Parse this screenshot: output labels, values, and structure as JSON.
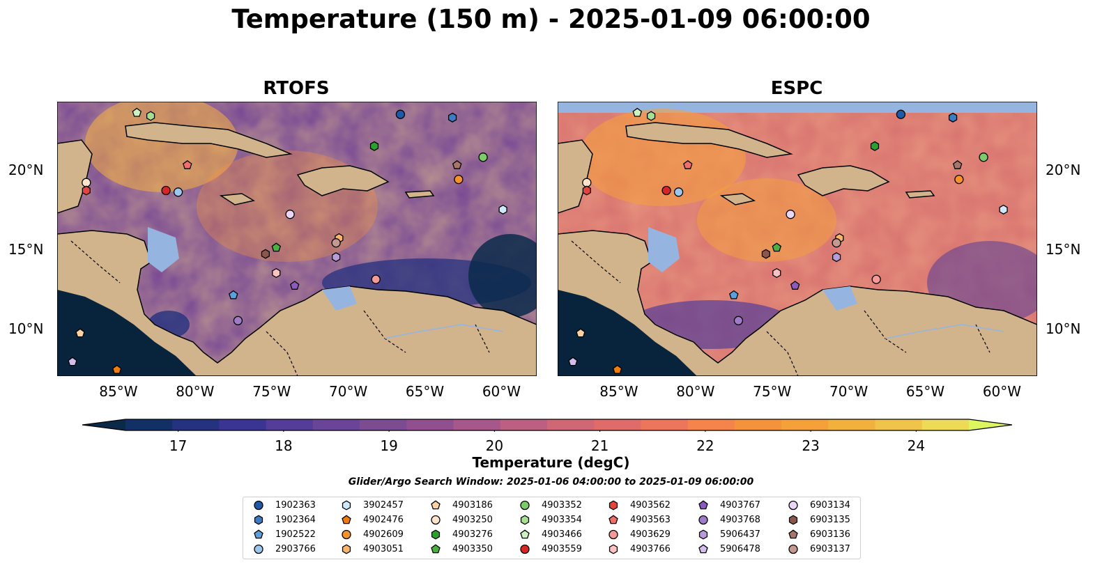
{
  "title": "Temperature (150 m) - 2025-01-09 06:00:00",
  "panels": [
    {
      "title": "RTOFS"
    },
    {
      "title": "ESPC"
    }
  ],
  "axes": {
    "lon_ticks": [
      "85°W",
      "80°W",
      "75°W",
      "70°W",
      "65°W",
      "60°W"
    ],
    "lat_ticks": [
      "20°N",
      "15°N",
      "10°N"
    ]
  },
  "colorbar": {
    "label": "Temperature (degC)",
    "ticks": [
      "17",
      "18",
      "19",
      "20",
      "21",
      "22",
      "23",
      "24"
    ],
    "range": [
      16.5,
      24.5
    ],
    "colors": [
      "#0b2a4a",
      "#123066",
      "#24327f",
      "#3a3592",
      "#543d99",
      "#6a4497",
      "#7c4c93",
      "#924f8f",
      "#a7578a",
      "#bc5f80",
      "#cf6775",
      "#e06c6a",
      "#ec765a",
      "#f4844b",
      "#f5933d",
      "#f5a13a",
      "#f2b13d",
      "#f0c44a",
      "#eedb55",
      "#ddf55e"
    ]
  },
  "search_window": "Glider/Argo Search Window: 2025-01-06 04:00:00 to 2025-01-09 06:00:00",
  "floats": [
    {
      "id": "1902363",
      "marker": "circle",
      "color": "#1f5aa8"
    },
    {
      "id": "1902364",
      "marker": "hexagon",
      "color": "#3d7bc4"
    },
    {
      "id": "1902522",
      "marker": "pentagon",
      "color": "#5aa0dc"
    },
    {
      "id": "2903766",
      "marker": "circle",
      "color": "#9cc6ee"
    },
    {
      "id": "3902457",
      "marker": "hexagon",
      "color": "#cfe8fb"
    },
    {
      "id": "4902476",
      "marker": "pentagon",
      "color": "#f07c0c"
    },
    {
      "id": "4902609",
      "marker": "circle",
      "color": "#f7932a"
    },
    {
      "id": "4903051",
      "marker": "hexagon",
      "color": "#fab46e"
    },
    {
      "id": "4903186",
      "marker": "pentagon",
      "color": "#fcd2a2"
    },
    {
      "id": "4903250",
      "marker": "circle",
      "color": "#fde4cb"
    },
    {
      "id": "4903276",
      "marker": "hexagon",
      "color": "#2ba02b"
    },
    {
      "id": "4903350",
      "marker": "pentagon",
      "color": "#4cb040"
    },
    {
      "id": "4903352",
      "marker": "circle",
      "color": "#7ccb6a"
    },
    {
      "id": "4903354",
      "marker": "hexagon",
      "color": "#a6df92"
    },
    {
      "id": "4903466",
      "marker": "pentagon",
      "color": "#ccf2bf"
    },
    {
      "id": "4903559",
      "marker": "circle",
      "color": "#d62728"
    },
    {
      "id": "4903562",
      "marker": "hexagon",
      "color": "#e3443f"
    },
    {
      "id": "4903563",
      "marker": "pentagon",
      "color": "#ef6f6a"
    },
    {
      "id": "4903629",
      "marker": "circle",
      "color": "#f59a98"
    },
    {
      "id": "4903766",
      "marker": "hexagon",
      "color": "#fbc3c1"
    },
    {
      "id": "4903767",
      "marker": "pentagon",
      "color": "#8a5bbd"
    },
    {
      "id": "4903768",
      "marker": "circle",
      "color": "#a07cc8"
    },
    {
      "id": "5906437",
      "marker": "hexagon",
      "color": "#b89cd9"
    },
    {
      "id": "5906478",
      "marker": "pentagon",
      "color": "#d3bdea"
    },
    {
      "id": "6903134",
      "marker": "circle",
      "color": "#ead6f6"
    },
    {
      "id": "6903135",
      "marker": "hexagon",
      "color": "#8c564b"
    },
    {
      "id": "6903136",
      "marker": "pentagon",
      "color": "#a8756a"
    },
    {
      "id": "6903137",
      "marker": "circle",
      "color": "#c49a90"
    }
  ],
  "map_markers": [
    {
      "id": "1902363",
      "lon": -66.6,
      "lat": 23.5
    },
    {
      "id": "1902364",
      "lon": -63.2,
      "lat": 23.3
    },
    {
      "id": "1902522",
      "lon": -77.5,
      "lat": 12.1
    },
    {
      "id": "2903766",
      "lon": -81.1,
      "lat": 18.6
    },
    {
      "id": "3902457",
      "lon": -59.9,
      "lat": 17.5
    },
    {
      "id": "4902476",
      "lon": -85.1,
      "lat": 7.4
    },
    {
      "id": "4902609",
      "lon": -62.8,
      "lat": 19.4
    },
    {
      "id": "4903051",
      "lon": -70.6,
      "lat": 15.7
    },
    {
      "id": "4903186",
      "lon": -87.5,
      "lat": 9.7
    },
    {
      "id": "4903250",
      "lon": -87.1,
      "lat": 19.2
    },
    {
      "id": "4903276",
      "lon": -68.3,
      "lat": 21.5
    },
    {
      "id": "4903350",
      "lon": -74.7,
      "lat": 15.1
    },
    {
      "id": "4903352",
      "lon": -61.2,
      "lat": 20.8
    },
    {
      "id": "4903354",
      "lon": -82.9,
      "lat": 23.4
    },
    {
      "id": "4903466",
      "lon": -83.8,
      "lat": 23.6
    },
    {
      "id": "4903559",
      "lon": -81.9,
      "lat": 18.7
    },
    {
      "id": "4903562",
      "lon": -87.1,
      "lat": 18.7
    },
    {
      "id": "4903563",
      "lon": -80.5,
      "lat": 20.3
    },
    {
      "id": "4903629",
      "lon": -68.2,
      "lat": 13.1
    },
    {
      "id": "4903766",
      "lon": -74.7,
      "lat": 13.5
    },
    {
      "id": "4903767",
      "lon": -73.5,
      "lat": 12.7
    },
    {
      "id": "4903768",
      "lon": -77.2,
      "lat": 10.5
    },
    {
      "id": "5906437",
      "lon": -70.8,
      "lat": 14.5
    },
    {
      "id": "5906478",
      "lon": -88.0,
      "lat": 7.9
    },
    {
      "id": "6903134",
      "lon": -73.8,
      "lat": 17.2
    },
    {
      "id": "6903135",
      "lon": -75.4,
      "lat": 14.7
    },
    {
      "id": "6903136",
      "lon": -62.9,
      "lat": 20.3
    },
    {
      "id": "6903137",
      "lon": -70.8,
      "lat": 15.4
    }
  ]
}
